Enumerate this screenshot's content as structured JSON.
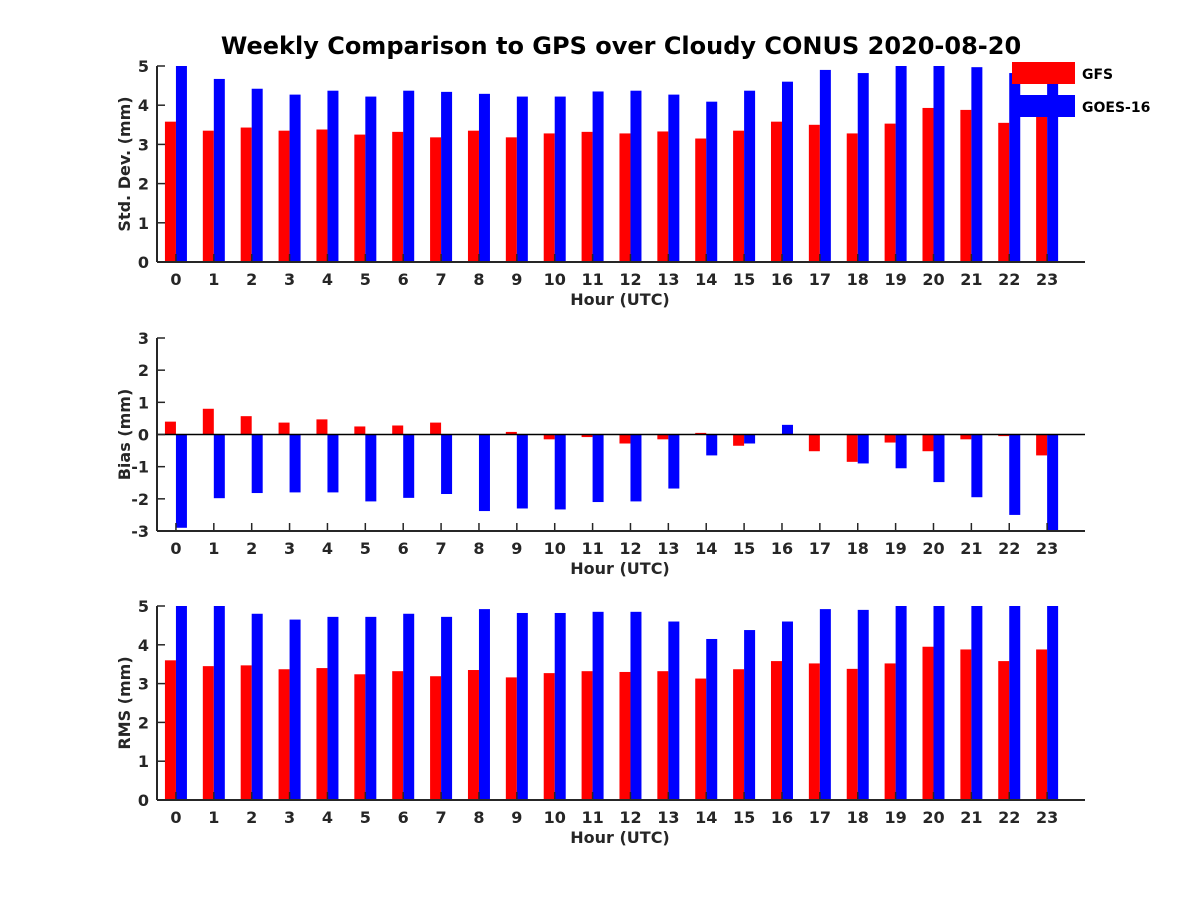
{
  "figure_title": "Weekly Comparison to GPS over Cloudy CONUS 2020-08-20",
  "legend": [
    {
      "name": "GFS",
      "color": "#ff0000"
    },
    {
      "name": "GOES-16",
      "color": "#0000ff"
    }
  ],
  "chart_data": [
    {
      "type": "bar",
      "xlabel": "Hour (UTC)",
      "ylabel": "Std. Dev. (mm)",
      "ylim": [
        0,
        5
      ],
      "yticks": [
        0,
        1,
        2,
        3,
        4,
        5
      ],
      "categories": [
        "0",
        "1",
        "2",
        "3",
        "4",
        "5",
        "6",
        "7",
        "8",
        "9",
        "10",
        "11",
        "12",
        "13",
        "14",
        "15",
        "16",
        "17",
        "18",
        "19",
        "20",
        "21",
        "22",
        "23"
      ],
      "series": [
        {
          "name": "GFS",
          "color": "#ff0000",
          "values": [
            3.58,
            3.35,
            3.43,
            3.35,
            3.38,
            3.25,
            3.32,
            3.18,
            3.35,
            3.18,
            3.28,
            3.32,
            3.28,
            3.33,
            3.15,
            3.35,
            3.58,
            3.5,
            3.28,
            3.53,
            3.93,
            3.88,
            3.55,
            3.85
          ]
        },
        {
          "name": "GOES-16",
          "color": "#0000ff",
          "values": [
            5.0,
            4.67,
            4.42,
            4.27,
            4.37,
            4.22,
            4.37,
            4.34,
            4.29,
            4.22,
            4.22,
            4.35,
            4.37,
            4.27,
            4.09,
            4.37,
            4.6,
            4.9,
            4.82,
            5.0,
            5.0,
            4.97,
            4.82,
            4.6
          ]
        }
      ]
    },
    {
      "type": "bar",
      "xlabel": "Hour (UTC)",
      "ylabel": "Bias (mm)",
      "ylim": [
        -3,
        3
      ],
      "yticks": [
        -3,
        -2,
        -1,
        0,
        1,
        2,
        3
      ],
      "categories": [
        "0",
        "1",
        "2",
        "3",
        "4",
        "5",
        "6",
        "7",
        "8",
        "9",
        "10",
        "11",
        "12",
        "13",
        "14",
        "15",
        "16",
        "17",
        "18",
        "19",
        "20",
        "21",
        "22",
        "23"
      ],
      "series": [
        {
          "name": "GFS",
          "color": "#ff0000",
          "values": [
            0.4,
            0.8,
            0.57,
            0.37,
            0.47,
            0.25,
            0.28,
            0.37,
            0.0,
            0.08,
            -0.15,
            -0.08,
            -0.28,
            -0.15,
            0.05,
            -0.35,
            0.0,
            -0.52,
            -0.85,
            -0.25,
            -0.52,
            -0.15,
            -0.05,
            -0.65
          ]
        },
        {
          "name": "GOES-16",
          "color": "#0000ff",
          "values": [
            -2.9,
            -1.98,
            -1.82,
            -1.8,
            -1.8,
            -2.08,
            -1.97,
            -1.85,
            -2.38,
            -2.3,
            -2.33,
            -2.1,
            -2.08,
            -1.68,
            -0.65,
            -0.28,
            0.3,
            0.0,
            -0.9,
            -1.05,
            -1.48,
            -1.95,
            -2.5,
            -3.0
          ]
        }
      ]
    },
    {
      "type": "bar",
      "xlabel": "Hour (UTC)",
      "ylabel": "RMS (mm)",
      "ylim": [
        0,
        5
      ],
      "yticks": [
        0,
        1,
        2,
        3,
        4,
        5
      ],
      "categories": [
        "0",
        "1",
        "2",
        "3",
        "4",
        "5",
        "6",
        "7",
        "8",
        "9",
        "10",
        "11",
        "12",
        "13",
        "14",
        "15",
        "16",
        "17",
        "18",
        "19",
        "20",
        "21",
        "22",
        "23"
      ],
      "series": [
        {
          "name": "GFS",
          "color": "#ff0000",
          "values": [
            3.6,
            3.45,
            3.47,
            3.37,
            3.4,
            3.24,
            3.32,
            3.19,
            3.35,
            3.16,
            3.27,
            3.32,
            3.3,
            3.32,
            3.13,
            3.37,
            3.58,
            3.52,
            3.38,
            3.52,
            3.95,
            3.88,
            3.58,
            3.88
          ]
        },
        {
          "name": "GOES-16",
          "color": "#0000ff",
          "values": [
            5.0,
            5.0,
            4.8,
            4.65,
            4.72,
            4.72,
            4.8,
            4.72,
            4.92,
            4.82,
            4.82,
            4.85,
            4.85,
            4.6,
            4.15,
            4.38,
            4.6,
            4.92,
            4.9,
            5.0,
            5.0,
            5.0,
            5.0,
            5.0
          ]
        }
      ]
    }
  ]
}
